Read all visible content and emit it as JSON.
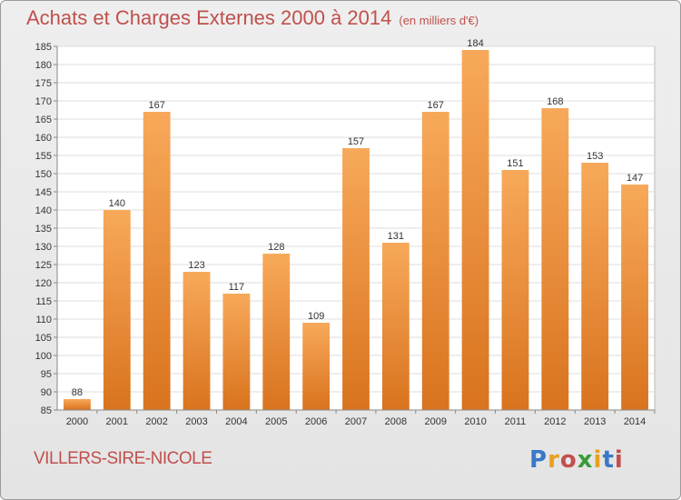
{
  "title": "Achats et Charges Externes 2000 à 2014",
  "unit_note": "(en milliers d'€)",
  "commune": "VILLERS-SIRE-NICOLE",
  "logo": {
    "text": "Proxiti",
    "colors": [
      "#3a78c9",
      "#e8a020",
      "#c0504d",
      "#3a9a3a",
      "#e8a020",
      "#3a78c9",
      "#c0504d"
    ]
  },
  "colors": {
    "bar_light": "#f7a95a",
    "bar_dark": "#d9731e",
    "title": "#c0504d"
  },
  "chart_data": {
    "type": "bar",
    "categories": [
      "2000",
      "2001",
      "2002",
      "2003",
      "2004",
      "2005",
      "2006",
      "2007",
      "2008",
      "2009",
      "2010",
      "2011",
      "2012",
      "2013",
      "2014"
    ],
    "values": [
      88,
      140,
      167,
      123,
      117,
      128,
      109,
      157,
      131,
      167,
      184,
      151,
      168,
      153,
      147
    ],
    "ylim": [
      85,
      185
    ],
    "yticks": [
      85,
      90,
      95,
      100,
      105,
      110,
      115,
      120,
      125,
      130,
      135,
      140,
      145,
      150,
      155,
      160,
      165,
      170,
      175,
      180,
      185
    ],
    "grid": true
  }
}
